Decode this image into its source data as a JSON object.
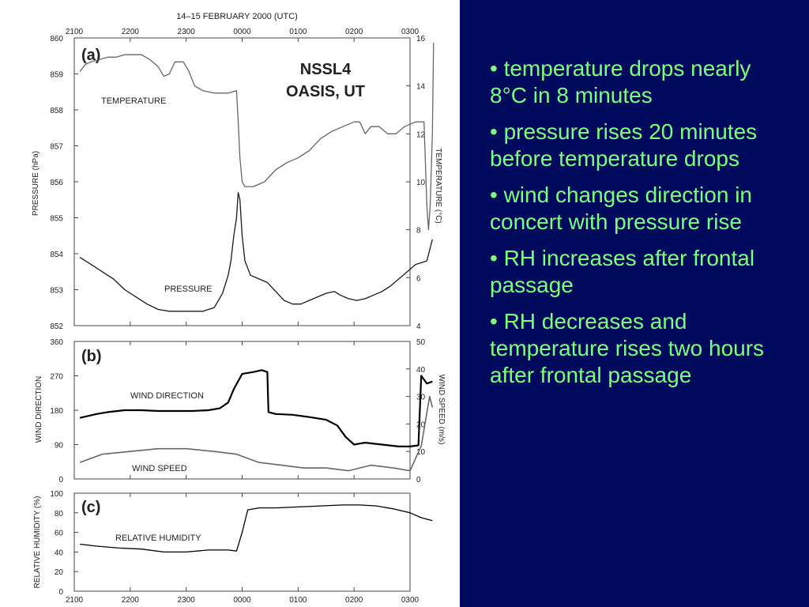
{
  "slide": {
    "text_color": "#7dff7d",
    "panel_color": "#000a5c",
    "bullets": [
      "• temperature drops nearly 8°C in 8 minutes",
      "• pressure rises 20 minutes before temperature drops",
      "• wind changes direction in concert with pressure rise",
      "• RH increases after frontal passage",
      "• RH decreases and temperature rises two hours after frontal passage"
    ]
  },
  "figure": {
    "date_title": "14–15 FEBRUARY 2000 (UTC)",
    "station": [
      "NSSL4",
      "OASIS, UT"
    ],
    "time_ticks": [
      "2100",
      "2200",
      "2300",
      "0000",
      "0100",
      "0200",
      "0300"
    ]
  },
  "chart_data": [
    {
      "type": "line",
      "panel_label": "(a)",
      "x_unit_note": "hours after 2100 UTC 14 Feb 2000",
      "x_ticks": [
        "2100",
        "2200",
        "2300",
        "0000",
        "0100",
        "0200",
        "0300"
      ],
      "y_left": {
        "label": "PRESSURE (hPa)",
        "range": [
          852,
          860
        ],
        "ticks": [
          "852",
          "853",
          "854",
          "855",
          "856",
          "857",
          "858",
          "859",
          "860"
        ]
      },
      "y_right": {
        "label": "TEMPERATURE (°C)",
        "range": [
          4,
          16
        ],
        "ticks": [
          "4",
          "6",
          "8",
          "10",
          "12",
          "14",
          "16"
        ]
      },
      "series": [
        {
          "name": "TEMPERATURE",
          "axis": "right",
          "points": [
            [
              0.1,
              14.6
            ],
            [
              0.2,
              14.9
            ],
            [
              0.3,
              15.0
            ],
            [
              0.45,
              15.1
            ],
            [
              0.6,
              15.2
            ],
            [
              0.75,
              15.2
            ],
            [
              0.9,
              15.3
            ],
            [
              1.05,
              15.3
            ],
            [
              1.2,
              15.3
            ],
            [
              1.35,
              15.1
            ],
            [
              1.5,
              14.8
            ],
            [
              1.6,
              14.4
            ],
            [
              1.7,
              14.5
            ],
            [
              1.8,
              15.0
            ],
            [
              1.95,
              15.0
            ],
            [
              2.05,
              14.6
            ],
            [
              2.15,
              14.0
            ],
            [
              2.3,
              13.8
            ],
            [
              2.5,
              13.7
            ],
            [
              2.75,
              13.7
            ],
            [
              2.9,
              13.8
            ],
            [
              2.93,
              12.5
            ],
            [
              2.96,
              11.0
            ],
            [
              3.0,
              10.0
            ],
            [
              3.05,
              9.8
            ],
            [
              3.2,
              9.8
            ],
            [
              3.4,
              10.0
            ],
            [
              3.6,
              10.5
            ],
            [
              3.8,
              10.8
            ],
            [
              4.0,
              11.0
            ],
            [
              4.2,
              11.3
            ],
            [
              4.4,
              11.8
            ],
            [
              4.6,
              12.1
            ],
            [
              4.8,
              12.3
            ],
            [
              5.0,
              12.5
            ],
            [
              5.1,
              12.5
            ],
            [
              5.2,
              12.0
            ],
            [
              5.3,
              12.3
            ],
            [
              5.45,
              12.3
            ],
            [
              5.6,
              12.0
            ],
            [
              5.75,
              12.0
            ],
            [
              5.9,
              12.3
            ],
            [
              6.1,
              12.5
            ],
            [
              6.25,
              12.5
            ],
            [
              6.3,
              9.0
            ],
            [
              6.33,
              8.0
            ],
            [
              6.36,
              9.0
            ],
            [
              6.4,
              12.0
            ],
            [
              6.42,
              15.8
            ]
          ]
        },
        {
          "name": "PRESSURE",
          "axis": "left",
          "points": [
            [
              0.1,
              853.9
            ],
            [
              0.3,
              853.7
            ],
            [
              0.5,
              853.5
            ],
            [
              0.7,
              853.3
            ],
            [
              0.9,
              853.0
            ],
            [
              1.1,
              852.8
            ],
            [
              1.3,
              852.6
            ],
            [
              1.5,
              852.45
            ],
            [
              1.7,
              852.4
            ],
            [
              1.9,
              852.4
            ],
            [
              2.1,
              852.4
            ],
            [
              2.3,
              852.4
            ],
            [
              2.5,
              852.5
            ],
            [
              2.65,
              852.9
            ],
            [
              2.75,
              853.4
            ],
            [
              2.8,
              853.8
            ],
            [
              2.85,
              854.5
            ],
            [
              2.9,
              855.0
            ],
            [
              2.93,
              855.7
            ],
            [
              2.96,
              855.5
            ],
            [
              3.0,
              854.5
            ],
            [
              3.05,
              853.8
            ],
            [
              3.15,
              853.4
            ],
            [
              3.3,
              853.3
            ],
            [
              3.45,
              853.2
            ],
            [
              3.6,
              852.95
            ],
            [
              3.75,
              852.7
            ],
            [
              3.9,
              852.6
            ],
            [
              4.05,
              852.6
            ],
            [
              4.2,
              852.7
            ],
            [
              4.35,
              852.8
            ],
            [
              4.5,
              852.9
            ],
            [
              4.65,
              852.95
            ],
            [
              4.75,
              852.85
            ],
            [
              4.9,
              852.75
            ],
            [
              5.05,
              852.7
            ],
            [
              5.2,
              852.75
            ],
            [
              5.35,
              852.85
            ],
            [
              5.5,
              852.95
            ],
            [
              5.65,
              853.1
            ],
            [
              5.8,
              853.3
            ],
            [
              5.95,
              853.5
            ],
            [
              6.1,
              853.7
            ],
            [
              6.3,
              853.8
            ],
            [
              6.4,
              854.4
            ]
          ]
        }
      ],
      "annotations": [
        "TEMPERATURE",
        "PRESSURE"
      ]
    },
    {
      "type": "line",
      "panel_label": "(b)",
      "y_left": {
        "label": "WIND DIRECTION",
        "range": [
          0,
          360
        ],
        "ticks": [
          "0",
          "90",
          "180",
          "270",
          "360"
        ]
      },
      "y_right": {
        "label": "WIND SPEED (m/s)",
        "range": [
          0,
          50
        ],
        "ticks": [
          "0",
          "10",
          "20",
          "30",
          "40",
          "50"
        ]
      },
      "series": [
        {
          "name": "WIND DIRECTION",
          "axis": "left",
          "points": [
            [
              0.1,
              160
            ],
            [
              0.4,
              170
            ],
            [
              0.6,
              175
            ],
            [
              0.9,
              180
            ],
            [
              1.2,
              180
            ],
            [
              1.5,
              178
            ],
            [
              1.8,
              178
            ],
            [
              2.1,
              178
            ],
            [
              2.4,
              180
            ],
            [
              2.6,
              185
            ],
            [
              2.75,
              200
            ],
            [
              2.85,
              235
            ],
            [
              3.0,
              275
            ],
            [
              3.2,
              280
            ],
            [
              3.35,
              285
            ],
            [
              3.45,
              280
            ],
            [
              3.47,
              175
            ],
            [
              3.6,
              170
            ],
            [
              3.9,
              168
            ],
            [
              4.2,
              162
            ],
            [
              4.5,
              155
            ],
            [
              4.7,
              140
            ],
            [
              4.85,
              110
            ],
            [
              5.0,
              90
            ],
            [
              5.2,
              95
            ],
            [
              5.5,
              90
            ],
            [
              5.8,
              85
            ],
            [
              6.0,
              85
            ],
            [
              6.15,
              88
            ],
            [
              6.2,
              270
            ],
            [
              6.3,
              250
            ],
            [
              6.4,
              255
            ]
          ]
        },
        {
          "name": "WIND SPEED",
          "axis": "right",
          "points": [
            [
              0.1,
              6
            ],
            [
              0.5,
              9
            ],
            [
              1.0,
              10
            ],
            [
              1.5,
              11
            ],
            [
              2.0,
              11
            ],
            [
              2.5,
              10
            ],
            [
              2.9,
              9
            ],
            [
              3.3,
              6
            ],
            [
              3.7,
              5
            ],
            [
              4.1,
              4
            ],
            [
              4.5,
              4
            ],
            [
              4.9,
              3
            ],
            [
              5.3,
              5
            ],
            [
              5.7,
              4
            ],
            [
              6.0,
              3
            ],
            [
              6.2,
              12
            ],
            [
              6.35,
              30
            ],
            [
              6.4,
              26
            ]
          ]
        }
      ],
      "annotations": [
        "WIND DIRECTION",
        "WIND SPEED"
      ]
    },
    {
      "type": "line",
      "panel_label": "(c)",
      "y_left": {
        "label": "RELATIVE HUMIDITY (%)",
        "range": [
          0,
          100
        ],
        "ticks": [
          "0",
          "20",
          "40",
          "60",
          "80",
          "100"
        ]
      },
      "series": [
        {
          "name": "RELATIVE HUMIDITY",
          "axis": "left",
          "points": [
            [
              0.1,
              48
            ],
            [
              0.4,
              46
            ],
            [
              0.8,
              44
            ],
            [
              1.2,
              43
            ],
            [
              1.6,
              40
            ],
            [
              2.0,
              40
            ],
            [
              2.4,
              42
            ],
            [
              2.75,
              42
            ],
            [
              2.9,
              41
            ],
            [
              3.0,
              60
            ],
            [
              3.1,
              83
            ],
            [
              3.3,
              85
            ],
            [
              3.6,
              85
            ],
            [
              4.0,
              86
            ],
            [
              4.4,
              87
            ],
            [
              4.8,
              88
            ],
            [
              5.1,
              88
            ],
            [
              5.4,
              87
            ],
            [
              5.7,
              84
            ],
            [
              6.0,
              80
            ],
            [
              6.2,
              75
            ],
            [
              6.4,
              72
            ]
          ]
        }
      ],
      "annotations": [
        "RELATIVE HUMIDITY"
      ]
    }
  ]
}
